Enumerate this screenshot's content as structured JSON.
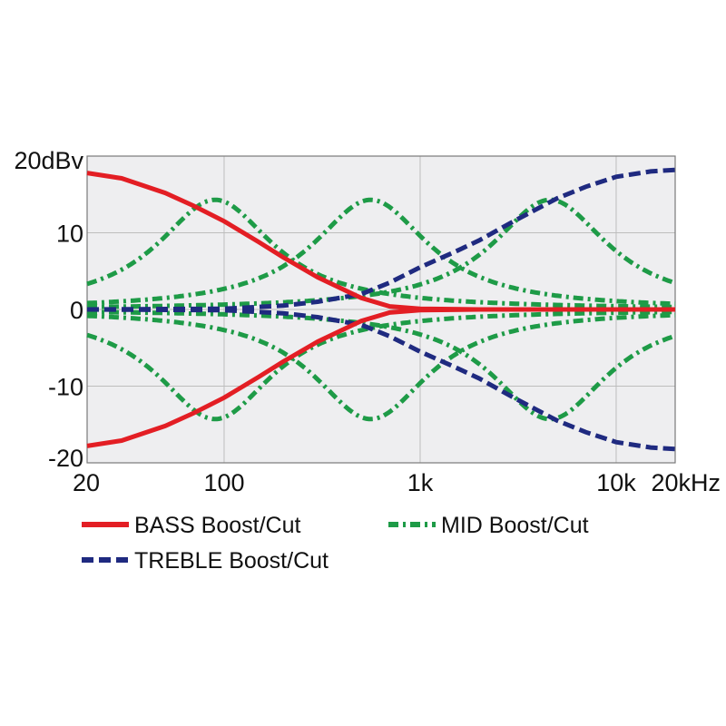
{
  "chart_data": {
    "type": "line",
    "title": "",
    "xlabel": "",
    "ylabel": "",
    "x_scale": "log",
    "xlim": [
      20,
      20000
    ],
    "ylim": [
      -20,
      20
    ],
    "grid": true,
    "legend_position": "bottom",
    "x_ticks": [
      {
        "value": 20,
        "label": "20"
      },
      {
        "value": 100,
        "label": "100"
      },
      {
        "value": 1000,
        "label": "1k"
      },
      {
        "value": 10000,
        "label": "10k"
      },
      {
        "value": 20000,
        "label": "20kHz"
      }
    ],
    "y_ticks": [
      {
        "value": 20,
        "label": "20dBv"
      },
      {
        "value": 10,
        "label": "10"
      },
      {
        "value": 0,
        "label": "0"
      },
      {
        "value": -10,
        "label": "-10"
      },
      {
        "value": -20,
        "label": "-20"
      }
    ],
    "colors": {
      "bass": "#e31e24",
      "treble": "#1f2a80",
      "mid": "#1e9b47",
      "plot_background": "#eeeef0",
      "grid": "#bdbdbd"
    },
    "series_groups": [
      {
        "name": "BASS Boost/Cut",
        "style": "solid",
        "color": "#e31e24",
        "curves": [
          {
            "x": [
              20,
              30,
              50,
              70,
              100,
              150,
              200,
              300,
              500,
              700,
              1000,
              2000,
              5000,
              20000
            ],
            "y": [
              17.8,
              17.1,
              15.2,
              13.5,
              11.5,
              8.8,
              6.8,
              4.2,
              1.5,
              0.4,
              0.1,
              0,
              0,
              0
            ]
          },
          {
            "x": [
              20,
              30,
              50,
              70,
              100,
              150,
              200,
              300,
              500,
              700,
              1000,
              2000,
              5000,
              20000
            ],
            "y": [
              -17.8,
              -17.1,
              -15.2,
              -13.5,
              -11.5,
              -8.8,
              -6.8,
              -4.2,
              -1.5,
              -0.4,
              -0.1,
              0,
              0,
              0
            ]
          }
        ]
      },
      {
        "name": "TREBLE Boost/Cut",
        "style": "dashed",
        "color": "#1f2a80",
        "curves": [
          {
            "x": [
              20,
              100,
              200,
              300,
              500,
              700,
              1000,
              1500,
              2000,
              3000,
              5000,
              7000,
              10000,
              15000,
              20000
            ],
            "y": [
              0,
              0.1,
              0.5,
              1,
              2,
              3.5,
              5.5,
              7.5,
              9,
              11.5,
              14.5,
              16,
              17.3,
              18,
              18.2
            ]
          },
          {
            "x": [
              20,
              100,
              200,
              300,
              500,
              700,
              1000,
              1500,
              2000,
              3000,
              5000,
              7000,
              10000,
              15000,
              20000
            ],
            "y": [
              0,
              -0.1,
              -0.5,
              -1,
              -2,
              -3.5,
              -5.5,
              -7.5,
              -9,
              -11.5,
              -14.5,
              -16,
              -17.3,
              -18,
              -18.2
            ]
          }
        ]
      },
      {
        "name": "MID Boost/Cut",
        "style": "dashdot",
        "color": "#1e9b47",
        "curves": [
          {
            "center": 90,
            "gain": 14.3,
            "width": 0.36
          },
          {
            "center": 90,
            "gain": -14.3,
            "width": 0.36
          },
          {
            "center": 560,
            "gain": 14.3,
            "width": 0.36
          },
          {
            "center": 560,
            "gain": -14.3,
            "width": 0.36
          },
          {
            "center": 4600,
            "gain": 14.3,
            "width": 0.36
          },
          {
            "center": 4600,
            "gain": -14.3,
            "width": 0.36
          }
        ]
      }
    ],
    "legend": [
      {
        "label": "BASS Boost/Cut",
        "style": "solid",
        "color": "#e31e24"
      },
      {
        "label": "MID Boost/Cut",
        "style": "dashdot",
        "color": "#1e9b47"
      },
      {
        "label": "TREBLE Boost/Cut",
        "style": "dashed",
        "color": "#1f2a80"
      }
    ]
  }
}
